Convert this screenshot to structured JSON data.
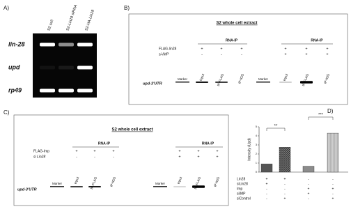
{
  "panel_a": {
    "label": "A)",
    "lanes": [
      "S2 cell",
      "S2-Lin28 siRNA",
      "S2-HA-Lin28"
    ],
    "rows": [
      "lin-28",
      "upd",
      "rp49"
    ]
  },
  "panel_b": {
    "label": "B)",
    "title": "S2 whole cell extract",
    "row_label": "upd-3'UTR",
    "conditions": [
      "FLAG-lin28",
      "si-IMP"
    ],
    "groups": [
      {
        "header": "RNA-IP",
        "marker": "Marker",
        "lanes": [
          "Input",
          "IP-FLAG",
          "IP-IGG"
        ],
        "signs": [
          [
            "+",
            "+",
            "+"
          ],
          [
            "-",
            "-",
            "-"
          ]
        ]
      },
      {
        "header": "RNA-IP",
        "marker": "Marker",
        "lanes": [
          "Input",
          "IP-FLAG",
          "IP-IGG"
        ],
        "signs": [
          [
            "+",
            "+",
            "+"
          ],
          [
            "+",
            "+",
            "+"
          ]
        ]
      }
    ]
  },
  "panel_c": {
    "label": "C)",
    "title": "S2 whole cell extract",
    "row_label": "upd-3'UTR",
    "conditions": [
      "FLAG-Imp",
      "si Lin28"
    ],
    "groups": [
      {
        "header": "RNA-IP",
        "marker": "Marker",
        "lanes": [
          "Input",
          "IP-FLAG",
          "IP-IGG"
        ],
        "signs": [
          [
            "+",
            "+",
            "+"
          ],
          [
            "-",
            "-",
            "-"
          ]
        ]
      },
      {
        "header": "RNA-IP",
        "marker": "Marker",
        "lanes": [
          "Input",
          "IP-FLAG",
          "IP-IGG"
        ],
        "signs": [
          [
            "+",
            "+",
            "+"
          ],
          [
            "+",
            "+",
            "+"
          ]
        ]
      }
    ]
  },
  "chart_data": {
    "type": "bar",
    "label": "D)",
    "ylabel": "Intensity (Upd)",
    "values": [
      0.9,
      2.75,
      0.65,
      4.3
    ],
    "colors": [
      "#555555",
      "#888888",
      "#8c8c8c",
      "#d0d0d0"
    ],
    "patterns": [
      "solid",
      "crosshatch",
      "solid",
      "stripes"
    ],
    "ylim": [
      0,
      5
    ],
    "yticks": [
      0,
      1,
      2,
      3,
      4,
      5
    ],
    "annotations": [
      "**",
      "***"
    ],
    "conditions": [
      {
        "name": "Lin28",
        "signs": [
          "+",
          "+",
          "-",
          "-"
        ]
      },
      {
        "name": "siLin28",
        "signs": [
          "+",
          "-",
          "-",
          "-"
        ]
      },
      {
        "name": "Imp",
        "signs": [
          "-",
          "-",
          "+",
          "+"
        ]
      },
      {
        "name": "siIMP",
        "signs": [
          "-",
          "-",
          "+",
          "-"
        ]
      },
      {
        "name": "siControl",
        "signs": [
          "-",
          "+",
          "-",
          "+"
        ]
      }
    ]
  }
}
